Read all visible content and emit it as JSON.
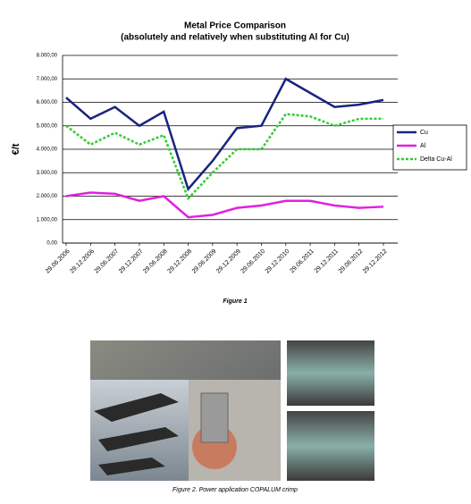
{
  "chart_data": {
    "type": "line",
    "title": "Metal Price Comparison",
    "subtitle": "(absolutely and relatively when substituting Al for Cu)",
    "y_label": "€/t",
    "x": [
      "29.06.2006",
      "29.12.2006",
      "29.06.2007",
      "29.12.2007",
      "29.06.2008",
      "29.12.2008",
      "29.06.2009",
      "29.12.2009",
      "29.06.2010",
      "29.12.2010",
      "29.06.2011",
      "29.12.2011",
      "29.06.2012",
      "29.12.2012"
    ],
    "series": [
      {
        "name": "Cu",
        "color": "#1a237e",
        "dash": false,
        "values": [
          6200,
          5300,
          5800,
          5000,
          5600,
          2300,
          3500,
          4900,
          5000,
          7000,
          6400,
          5800,
          5900,
          6100
        ]
      },
      {
        "name": "Al",
        "color": "#e020e0",
        "dash": false,
        "values": [
          2000,
          2150,
          2100,
          1800,
          2000,
          1100,
          1200,
          1500,
          1600,
          1800,
          1800,
          1600,
          1500,
          1550
        ]
      },
      {
        "name": "Delta Cu-Al",
        "color": "#33cc33",
        "dash": true,
        "values": [
          5000,
          4200,
          4700,
          4200,
          4600,
          1900,
          3000,
          4000,
          4000,
          5500,
          5400,
          5000,
          5300,
          5300
        ]
      }
    ],
    "ylim": [
      0,
      8000
    ],
    "yticks": [
      {
        "value": 0,
        "label": "0,00"
      },
      {
        "value": 1000,
        "label": "1.000,00"
      },
      {
        "value": 2000,
        "label": "2.000,00"
      },
      {
        "value": 3000,
        "label": "3.000,00"
      },
      {
        "value": 4000,
        "label": "4.000,00"
      },
      {
        "value": 5000,
        "label": "5.000,00"
      },
      {
        "value": 6000,
        "label": "6.000,00"
      },
      {
        "value": 7000,
        "label": "7.000,00"
      },
      {
        "value": 8000,
        "label": "8.000,00"
      }
    ],
    "grid": true,
    "legend": "right"
  },
  "figure1_caption": "Figure 1",
  "figure2_caption": "Figure 2. Power application COPALUM crimp"
}
